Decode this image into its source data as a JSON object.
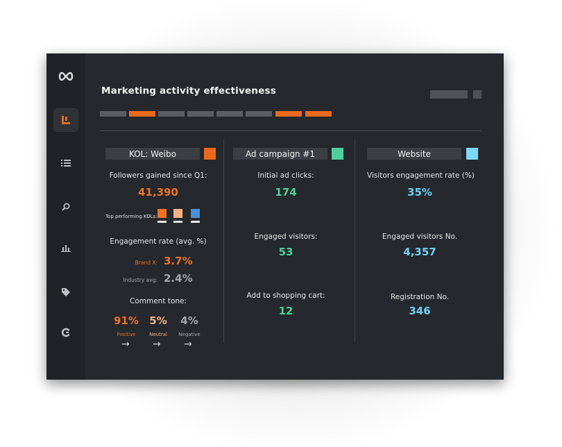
{
  "page": {
    "title": "Marketing activity effectiveness"
  },
  "sidebar": {
    "items": [
      {
        "icon": "infinity-logo-icon",
        "active": false
      },
      {
        "icon": "layout-icon",
        "active": true
      },
      {
        "icon": "list-icon",
        "active": false
      },
      {
        "icon": "search-icon",
        "active": false
      },
      {
        "icon": "bar-chart-icon",
        "active": false
      },
      {
        "icon": "tag-icon",
        "active": false
      },
      {
        "icon": "refresh-icon",
        "active": false
      }
    ]
  },
  "tabs": [
    {
      "active": false
    },
    {
      "active": true
    },
    {
      "active": false
    },
    {
      "active": false
    },
    {
      "active": false
    },
    {
      "active": false
    },
    {
      "active": true
    },
    {
      "active": true
    }
  ],
  "colors": {
    "accent": "#e9691f",
    "green": "#4fcf9b",
    "blue": "#6fd0f4",
    "kol_orange": "#ef7128",
    "kol_peach": "#f3b183",
    "kol_blue": "#4a90d6"
  },
  "kol": {
    "header": "KOL: Weibo",
    "followers_label": "Followers gained since Q1:",
    "followers_value": "41,390",
    "top_kols_label": "Top performing KOLs:",
    "engagement_label": "Engagement rate (avg. %)",
    "brand_label": "Brand X:",
    "brand_value": "3.7%",
    "industry_label": "Industry avg:",
    "industry_value": "2.4%",
    "comment_label": "Comment tone:",
    "tones": [
      {
        "value": "91%",
        "label": "Positive"
      },
      {
        "value": "5%",
        "label": "Neutral"
      },
      {
        "value": "4%",
        "label": "Negative"
      }
    ],
    "arrow": "→"
  },
  "ad": {
    "header": "Ad campaign #1",
    "metrics": [
      {
        "label": "Initial ad clicks:",
        "value": "174"
      },
      {
        "label": "Engaged visitors:",
        "value": "53"
      },
      {
        "label": "Add to shopping cart:",
        "value": "12"
      }
    ]
  },
  "web": {
    "header": "Website",
    "metrics": [
      {
        "label": "Visitors engagement rate (%)",
        "value": "35%"
      },
      {
        "label": "Engaged visitors No.",
        "value": "4,357"
      },
      {
        "label": "Registration No.",
        "value": "346"
      }
    ]
  }
}
